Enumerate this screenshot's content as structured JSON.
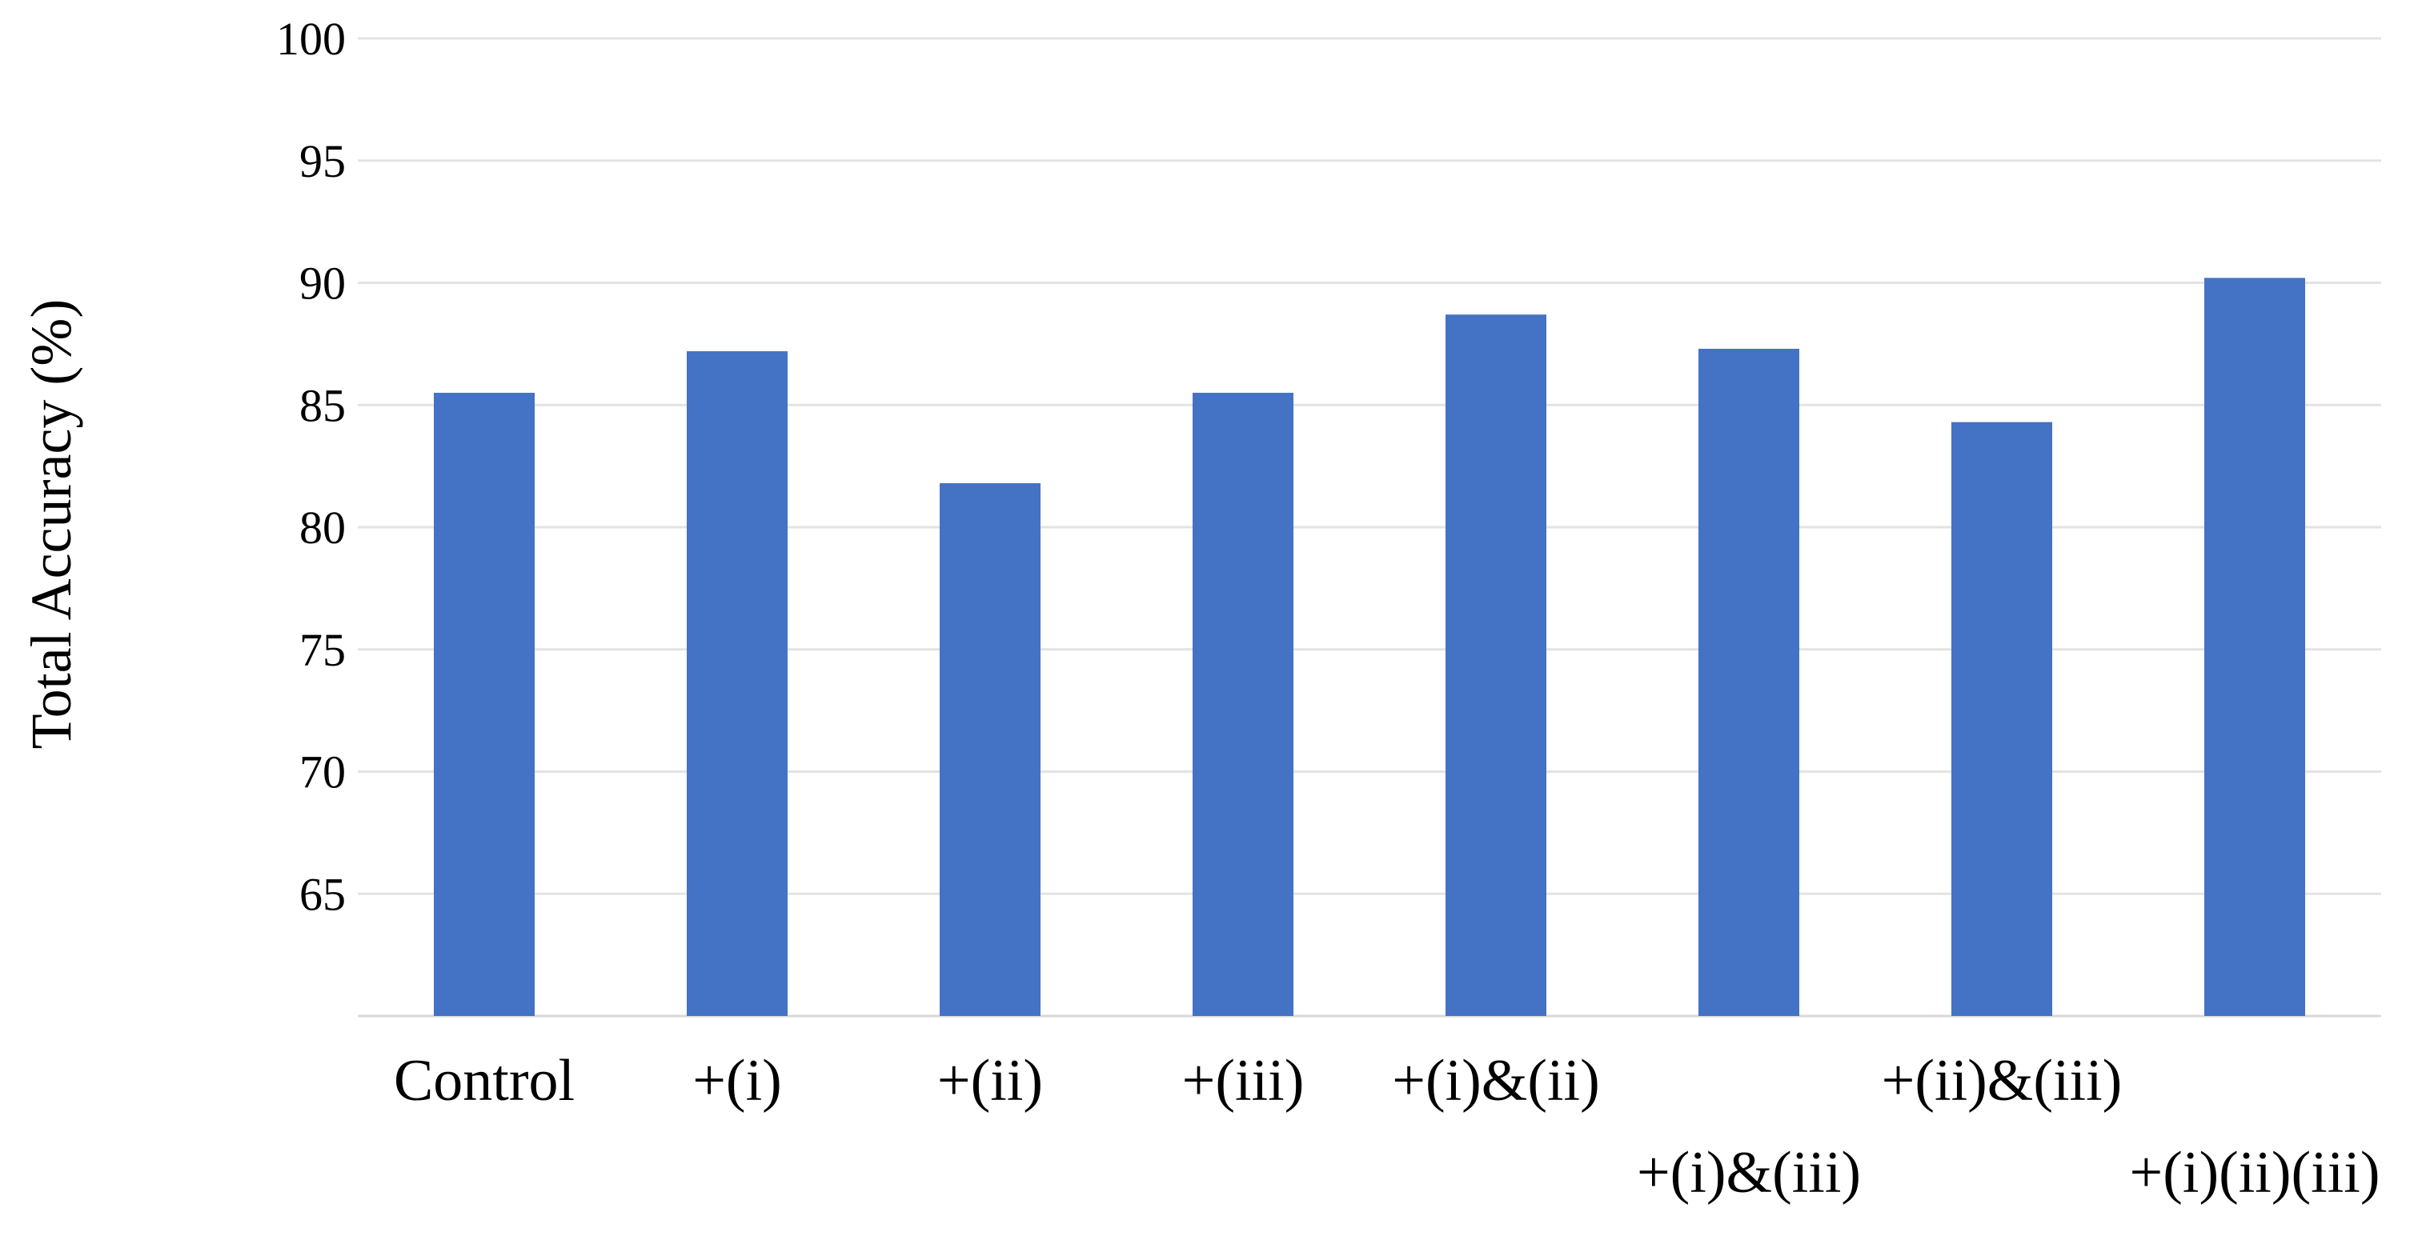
{
  "chart_data": {
    "type": "bar",
    "categories": [
      "Control",
      "+(i)",
      "+(ii)",
      "+(iii)",
      "+(i)&(ii)",
      "+(i)&(iii)",
      "+(ii)&(iii)",
      "+(i)(ii)(iii)"
    ],
    "values": [
      85.5,
      87.2,
      81.8,
      85.5,
      88.7,
      87.3,
      84.3,
      90.2
    ],
    "title": "",
    "xlabel": "",
    "ylabel": "Total Accuracy (%)",
    "ylim": [
      60,
      100
    ],
    "yticks": [
      65,
      70,
      75,
      80,
      85,
      90,
      95,
      100
    ],
    "grid": true,
    "legend": "none",
    "bar_color": "#4472c4",
    "label_row": [
      "upper",
      "upper",
      "upper",
      "upper",
      "upper",
      "lower",
      "upper",
      "lower"
    ]
  }
}
